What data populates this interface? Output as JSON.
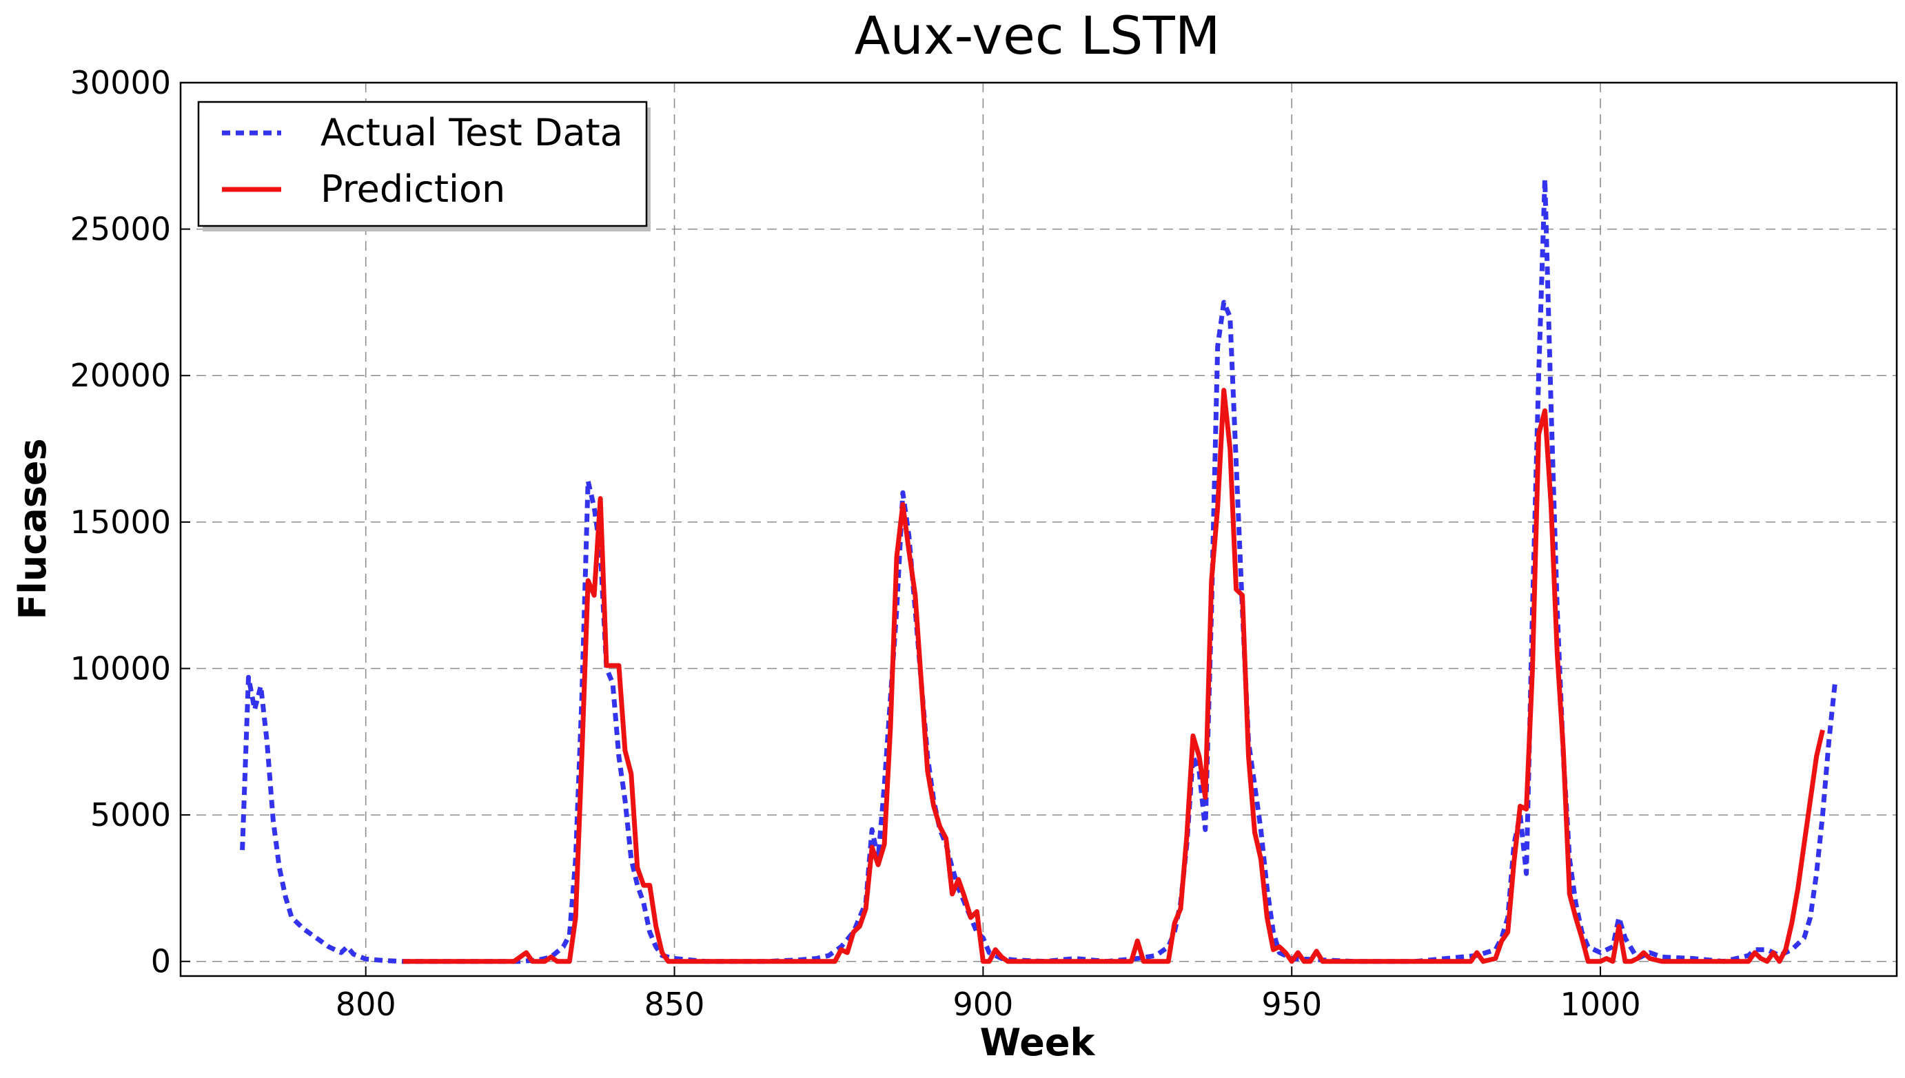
{
  "chart_data": {
    "type": "line",
    "title": "Aux-vec LSTM",
    "xlabel": "Week",
    "ylabel": "Flucases",
    "xlim": [
      770,
      1048
    ],
    "ylim": [
      -500,
      30000
    ],
    "xticks": [
      800,
      850,
      900,
      950,
      1000
    ],
    "yticks": [
      0,
      5000,
      10000,
      15000,
      20000,
      25000,
      30000
    ],
    "grid": true,
    "legend_position": "top-left",
    "series": [
      {
        "name": "Actual Test Data",
        "color": "#3333ee",
        "style": "dashed",
        "points": [
          [
            780,
            3800
          ],
          [
            781,
            9700
          ],
          [
            782,
            8600
          ],
          [
            783,
            9400
          ],
          [
            784,
            7500
          ],
          [
            785,
            4800
          ],
          [
            786,
            3200
          ],
          [
            787,
            2200
          ],
          [
            788,
            1500
          ],
          [
            790,
            1100
          ],
          [
            792,
            800
          ],
          [
            794,
            500
          ],
          [
            796,
            300
          ],
          [
            797,
            500
          ],
          [
            798,
            250
          ],
          [
            800,
            80
          ],
          [
            803,
            30
          ],
          [
            806,
            0
          ],
          [
            810,
            0
          ],
          [
            815,
            0
          ],
          [
            820,
            0
          ],
          [
            825,
            0
          ],
          [
            828,
            50
          ],
          [
            830,
            150
          ],
          [
            832,
            500
          ],
          [
            833,
            900
          ],
          [
            834,
            3500
          ],
          [
            835,
            9000
          ],
          [
            836,
            16400
          ],
          [
            837,
            15500
          ],
          [
            838,
            14000
          ],
          [
            839,
            10000
          ],
          [
            840,
            9500
          ],
          [
            841,
            7000
          ],
          [
            842,
            5500
          ],
          [
            843,
            3500
          ],
          [
            844,
            2600
          ],
          [
            845,
            2000
          ],
          [
            846,
            1000
          ],
          [
            847,
            500
          ],
          [
            848,
            200
          ],
          [
            850,
            100
          ],
          [
            855,
            0
          ],
          [
            860,
            0
          ],
          [
            865,
            0
          ],
          [
            870,
            50
          ],
          [
            873,
            100
          ],
          [
            875,
            200
          ],
          [
            877,
            500
          ],
          [
            879,
            1000
          ],
          [
            881,
            2000
          ],
          [
            882,
            4500
          ],
          [
            883,
            3500
          ],
          [
            884,
            6000
          ],
          [
            885,
            9000
          ],
          [
            886,
            12000
          ],
          [
            887,
            16000
          ],
          [
            888,
            14500
          ],
          [
            889,
            12000
          ],
          [
            890,
            9500
          ],
          [
            891,
            7000
          ],
          [
            892,
            5500
          ],
          [
            893,
            4500
          ],
          [
            894,
            4000
          ],
          [
            895,
            3200
          ],
          [
            896,
            2500
          ],
          [
            897,
            2000
          ],
          [
            898,
            1500
          ],
          [
            899,
            1000
          ],
          [
            900,
            800
          ],
          [
            901,
            300
          ],
          [
            903,
            100
          ],
          [
            905,
            50
          ],
          [
            910,
            0
          ],
          [
            915,
            100
          ],
          [
            920,
            0
          ],
          [
            925,
            100
          ],
          [
            928,
            200
          ],
          [
            930,
            500
          ],
          [
            931,
            1000
          ],
          [
            932,
            2000
          ],
          [
            933,
            4000
          ],
          [
            934,
            7000
          ],
          [
            935,
            6500
          ],
          [
            936,
            4500
          ],
          [
            937,
            12000
          ],
          [
            938,
            21000
          ],
          [
            939,
            22500
          ],
          [
            940,
            22000
          ],
          [
            941,
            17000
          ],
          [
            942,
            12000
          ],
          [
            943,
            7500
          ],
          [
            944,
            6000
          ],
          [
            945,
            4500
          ],
          [
            946,
            2500
          ],
          [
            947,
            1000
          ],
          [
            948,
            300
          ],
          [
            950,
            100
          ],
          [
            955,
            50
          ],
          [
            960,
            0
          ],
          [
            965,
            0
          ],
          [
            970,
            0
          ],
          [
            975,
            100
          ],
          [
            980,
            200
          ],
          [
            983,
            400
          ],
          [
            984,
            800
          ],
          [
            985,
            1500
          ],
          [
            986,
            4000
          ],
          [
            987,
            5000
          ],
          [
            988,
            3000
          ],
          [
            989,
            12000
          ],
          [
            990,
            20000
          ],
          [
            991,
            26700
          ],
          [
            992,
            19000
          ],
          [
            993,
            12000
          ],
          [
            994,
            7000
          ],
          [
            995,
            3500
          ],
          [
            996,
            2000
          ],
          [
            997,
            1000
          ],
          [
            998,
            500
          ],
          [
            1000,
            300
          ],
          [
            1002,
            500
          ],
          [
            1003,
            1500
          ],
          [
            1004,
            800
          ],
          [
            1006,
            100
          ],
          [
            1008,
            300
          ],
          [
            1010,
            150
          ],
          [
            1015,
            100
          ],
          [
            1020,
            0
          ],
          [
            1022,
            100
          ],
          [
            1024,
            200
          ],
          [
            1025,
            400
          ],
          [
            1027,
            400
          ],
          [
            1029,
            200
          ],
          [
            1031,
            400
          ],
          [
            1033,
            800
          ],
          [
            1034,
            1500
          ],
          [
            1035,
            3000
          ],
          [
            1036,
            5000
          ],
          [
            1037,
            7500
          ],
          [
            1038,
            9500
          ]
        ]
      },
      {
        "name": "Prediction",
        "color": "#ee1111",
        "style": "solid",
        "points": [
          [
            806,
            0
          ],
          [
            810,
            0
          ],
          [
            815,
            0
          ],
          [
            820,
            0
          ],
          [
            824,
            0
          ],
          [
            826,
            300
          ],
          [
            827,
            0
          ],
          [
            829,
            0
          ],
          [
            830,
            150
          ],
          [
            831,
            0
          ],
          [
            833,
            0
          ],
          [
            834,
            1500
          ],
          [
            835,
            7000
          ],
          [
            836,
            13000
          ],
          [
            837,
            12500
          ],
          [
            838,
            15800
          ],
          [
            839,
            10100
          ],
          [
            840,
            10100
          ],
          [
            841,
            10100
          ],
          [
            842,
            7200
          ],
          [
            843,
            6400
          ],
          [
            844,
            3200
          ],
          [
            845,
            2600
          ],
          [
            846,
            2600
          ],
          [
            847,
            1200
          ],
          [
            848,
            300
          ],
          [
            849,
            0
          ],
          [
            855,
            0
          ],
          [
            860,
            0
          ],
          [
            865,
            0
          ],
          [
            870,
            0
          ],
          [
            876,
            0
          ],
          [
            877,
            400
          ],
          [
            878,
            300
          ],
          [
            879,
            1000
          ],
          [
            880,
            1200
          ],
          [
            881,
            1800
          ],
          [
            882,
            3900
          ],
          [
            883,
            3300
          ],
          [
            884,
            4000
          ],
          [
            885,
            8000
          ],
          [
            886,
            13800
          ],
          [
            887,
            15600
          ],
          [
            888,
            14000
          ],
          [
            889,
            12500
          ],
          [
            890,
            9500
          ],
          [
            891,
            6500
          ],
          [
            892,
            5300
          ],
          [
            893,
            4600
          ],
          [
            894,
            4200
          ],
          [
            895,
            2300
          ],
          [
            896,
            2800
          ],
          [
            897,
            2200
          ],
          [
            898,
            1500
          ],
          [
            899,
            1700
          ],
          [
            900,
            0
          ],
          [
            901,
            0
          ],
          [
            902,
            400
          ],
          [
            903,
            150
          ],
          [
            904,
            0
          ],
          [
            910,
            0
          ],
          [
            915,
            0
          ],
          [
            920,
            0
          ],
          [
            924,
            0
          ],
          [
            925,
            700
          ],
          [
            926,
            0
          ],
          [
            928,
            0
          ],
          [
            930,
            0
          ],
          [
            931,
            1300
          ],
          [
            932,
            1800
          ],
          [
            933,
            4300
          ],
          [
            934,
            7700
          ],
          [
            935,
            7000
          ],
          [
            936,
            5600
          ],
          [
            937,
            13000
          ],
          [
            938,
            15500
          ],
          [
            939,
            19500
          ],
          [
            940,
            17500
          ],
          [
            941,
            12700
          ],
          [
            942,
            12500
          ],
          [
            943,
            7000
          ],
          [
            944,
            4400
          ],
          [
            945,
            3500
          ],
          [
            946,
            1500
          ],
          [
            947,
            400
          ],
          [
            948,
            500
          ],
          [
            949,
            300
          ],
          [
            950,
            0
          ],
          [
            951,
            300
          ],
          [
            952,
            0
          ],
          [
            953,
            0
          ],
          [
            954,
            350
          ],
          [
            955,
            0
          ],
          [
            960,
            0
          ],
          [
            965,
            0
          ],
          [
            970,
            0
          ],
          [
            975,
            0
          ],
          [
            979,
            0
          ],
          [
            980,
            300
          ],
          [
            981,
            0
          ],
          [
            983,
            100
          ],
          [
            984,
            700
          ],
          [
            985,
            1000
          ],
          [
            986,
            3400
          ],
          [
            987,
            5300
          ],
          [
            988,
            5200
          ],
          [
            989,
            10000
          ],
          [
            990,
            18000
          ],
          [
            991,
            18800
          ],
          [
            992,
            15600
          ],
          [
            993,
            10500
          ],
          [
            994,
            7200
          ],
          [
            995,
            2300
          ],
          [
            996,
            1500
          ],
          [
            997,
            800
          ],
          [
            998,
            0
          ],
          [
            1000,
            0
          ],
          [
            1001,
            100
          ],
          [
            1002,
            0
          ],
          [
            1003,
            1200
          ],
          [
            1004,
            0
          ],
          [
            1005,
            0
          ],
          [
            1006,
            100
          ],
          [
            1007,
            300
          ],
          [
            1008,
            100
          ],
          [
            1010,
            0
          ],
          [
            1015,
            0
          ],
          [
            1020,
            0
          ],
          [
            1024,
            0
          ],
          [
            1025,
            300
          ],
          [
            1026,
            100
          ],
          [
            1027,
            0
          ],
          [
            1028,
            300
          ],
          [
            1029,
            0
          ],
          [
            1030,
            400
          ],
          [
            1031,
            1300
          ],
          [
            1032,
            2500
          ],
          [
            1033,
            4000
          ],
          [
            1034,
            5500
          ],
          [
            1035,
            7000
          ],
          [
            1036,
            7900
          ]
        ]
      }
    ]
  }
}
